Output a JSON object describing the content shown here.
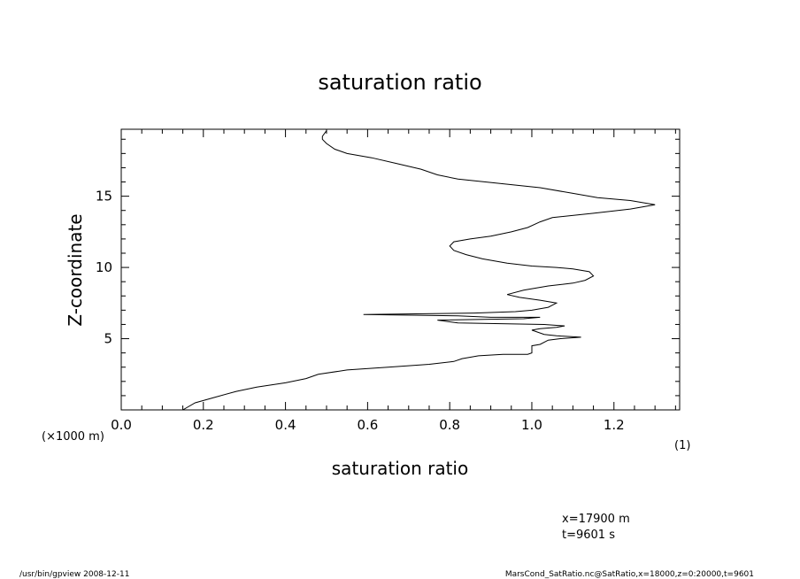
{
  "chart_data": {
    "type": "line",
    "title": "saturation ratio",
    "xlabel": "saturation ratio",
    "ylabel": "Z-coordinate",
    "y_unit_label": "(×1000 m)",
    "x_unit_label": "(1)",
    "xlim": [
      0.0,
      1.36
    ],
    "ylim": [
      0,
      19.7
    ],
    "xticks": [
      "0.0",
      "0.2",
      "0.4",
      "0.6",
      "0.8",
      "1.0",
      "1.2"
    ],
    "xtick_values": [
      0.0,
      0.2,
      0.4,
      0.6,
      0.8,
      1.0,
      1.2
    ],
    "yticks": [
      "5",
      "10",
      "15"
    ],
    "ytick_values": [
      5,
      10,
      15
    ],
    "grid": false,
    "series": [
      {
        "points": [
          [
            0.15,
            0.0
          ],
          [
            0.18,
            0.5
          ],
          [
            0.23,
            0.9
          ],
          [
            0.28,
            1.3
          ],
          [
            0.33,
            1.6
          ],
          [
            0.4,
            1.9
          ],
          [
            0.45,
            2.2
          ],
          [
            0.48,
            2.5
          ],
          [
            0.55,
            2.8
          ],
          [
            0.65,
            3.0
          ],
          [
            0.75,
            3.2
          ],
          [
            0.81,
            3.4
          ],
          [
            0.83,
            3.6
          ],
          [
            0.87,
            3.8
          ],
          [
            0.93,
            3.9
          ],
          [
            0.99,
            3.9
          ],
          [
            1.0,
            4.0
          ],
          [
            1.0,
            4.5
          ],
          [
            1.02,
            4.6
          ],
          [
            1.04,
            4.9
          ],
          [
            1.07,
            5.0
          ],
          [
            1.12,
            5.1
          ],
          [
            1.06,
            5.2
          ],
          [
            1.03,
            5.3
          ],
          [
            1.0,
            5.6
          ],
          [
            1.02,
            5.7
          ],
          [
            1.06,
            5.8
          ],
          [
            1.08,
            5.9
          ],
          [
            1.03,
            6.0
          ],
          [
            0.82,
            6.1
          ],
          [
            0.77,
            6.3
          ],
          [
            0.98,
            6.4
          ],
          [
            1.02,
            6.5
          ],
          [
            0.9,
            6.5
          ],
          [
            0.82,
            6.6
          ],
          [
            0.59,
            6.7
          ],
          [
            0.86,
            6.8
          ],
          [
            0.96,
            6.9
          ],
          [
            1.0,
            7.0
          ],
          [
            1.04,
            7.2
          ],
          [
            1.06,
            7.5
          ],
          [
            1.02,
            7.7
          ],
          [
            0.97,
            7.9
          ],
          [
            0.94,
            8.1
          ],
          [
            0.98,
            8.4
          ],
          [
            1.04,
            8.7
          ],
          [
            1.1,
            8.9
          ],
          [
            1.13,
            9.1
          ],
          [
            1.15,
            9.4
          ],
          [
            1.14,
            9.7
          ],
          [
            1.1,
            9.9
          ],
          [
            1.06,
            10.0
          ],
          [
            1.0,
            10.1
          ],
          [
            0.94,
            10.3
          ],
          [
            0.88,
            10.6
          ],
          [
            0.84,
            10.9
          ],
          [
            0.81,
            11.2
          ],
          [
            0.8,
            11.5
          ],
          [
            0.81,
            11.8
          ],
          [
            0.85,
            12.0
          ],
          [
            0.9,
            12.2
          ],
          [
            0.95,
            12.5
          ],
          [
            0.99,
            12.8
          ],
          [
            1.02,
            13.2
          ],
          [
            1.05,
            13.5
          ],
          [
            1.15,
            13.8
          ],
          [
            1.24,
            14.1
          ],
          [
            1.3,
            14.4
          ],
          [
            1.24,
            14.7
          ],
          [
            1.16,
            14.9
          ],
          [
            1.1,
            15.2
          ],
          [
            1.02,
            15.6
          ],
          [
            0.92,
            15.9
          ],
          [
            0.82,
            16.2
          ],
          [
            0.77,
            16.5
          ],
          [
            0.73,
            16.9
          ],
          [
            0.67,
            17.3
          ],
          [
            0.61,
            17.7
          ],
          [
            0.55,
            18.0
          ],
          [
            0.52,
            18.3
          ],
          [
            0.5,
            18.7
          ],
          [
            0.49,
            19.0
          ],
          [
            0.49,
            19.2
          ],
          [
            0.5,
            19.6
          ]
        ]
      }
    ],
    "annotations": [
      "x=17900 m",
      "t=9601 s"
    ]
  },
  "footer": {
    "left": "/usr/bin/gpview   2008-12-11",
    "right": "MarsCond_SatRatio.nc@SatRatio,x=18000,z=0:20000,t=9601"
  }
}
